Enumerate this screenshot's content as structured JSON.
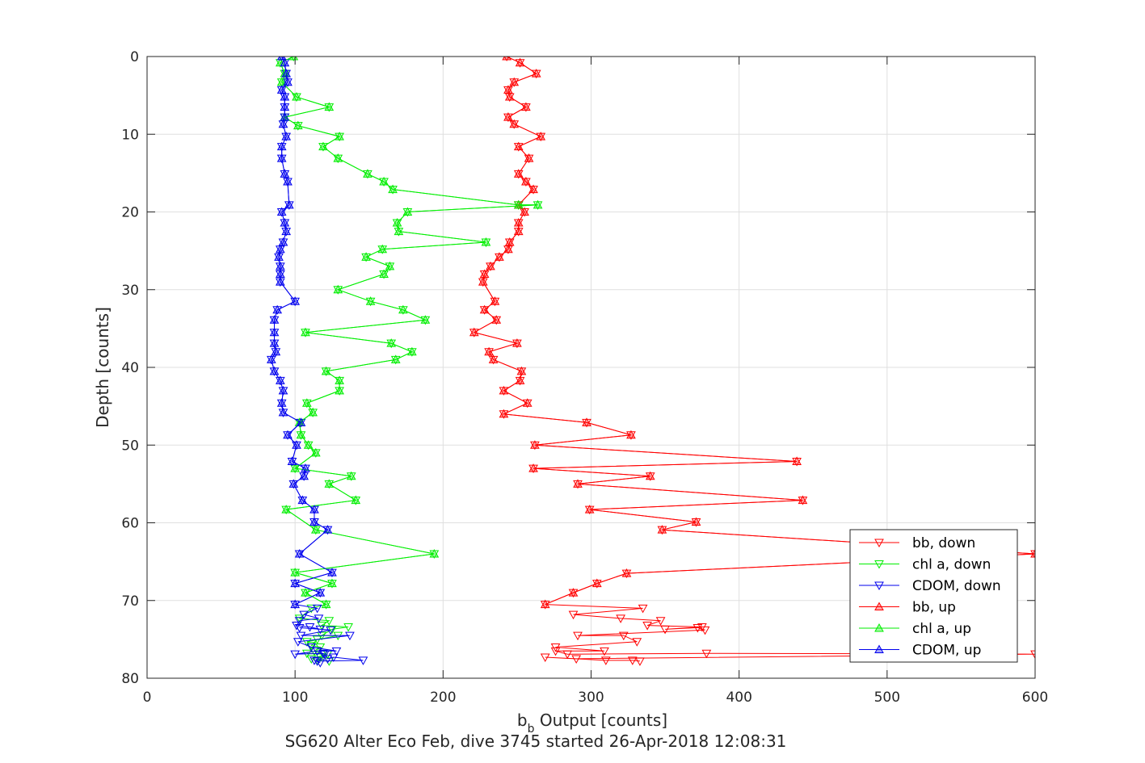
{
  "chart_data": {
    "type": "line",
    "xlabel_main": "b",
    "xlabel_sub": "b",
    "xlabel_rest": " Output [counts]",
    "ylabel": "Depth [counts]",
    "caption": "SG620 Alter Eco Feb, dive 3745 started 26-Apr-2018 12:08:31",
    "xlim": [
      0,
      600
    ],
    "ylim": [
      0,
      80
    ],
    "y_reversed": true,
    "grid": true,
    "legend_placement": "bottom-right",
    "xticks": [
      "0",
      "100",
      "200",
      "300",
      "400",
      "500",
      "600"
    ],
    "yticks": [
      "0",
      "10",
      "20",
      "30",
      "40",
      "50",
      "60",
      "70",
      "80"
    ],
    "series": [
      {
        "name": "bb, down",
        "color": "#ff0000",
        "marker": "down",
        "x": [
          243,
          252,
          263,
          248,
          244,
          245,
          256,
          244,
          248,
          266,
          251,
          258,
          251,
          256,
          261,
          251,
          255,
          251,
          251,
          245,
          244,
          238,
          232,
          228,
          227,
          235,
          228,
          236,
          221,
          250,
          231,
          234,
          253,
          252,
          241,
          257,
          241,
          297,
          327,
          262,
          439,
          261,
          340,
          291,
          443,
          299,
          371,
          348,
          600,
          324,
          304,
          288,
          269,
          335,
          288,
          320,
          347,
          338,
          375,
          350,
          372,
          377,
          291,
          322,
          331,
          276,
          309,
          276,
          284,
          378,
          600,
          290,
          269,
          310,
          328,
          333
        ],
        "y": [
          0,
          0.8,
          2.2,
          3.3,
          4.3,
          5.2,
          6.5,
          7.8,
          8.7,
          10.3,
          11.6,
          13.1,
          15.1,
          16.1,
          17.1,
          19.1,
          20.0,
          21.4,
          22.5,
          23.9,
          24.8,
          25.8,
          27.0,
          28.0,
          29.0,
          31.5,
          32.6,
          33.9,
          35.5,
          36.9,
          38.0,
          39.0,
          40.5,
          41.7,
          43.0,
          44.6,
          46.0,
          47.1,
          48.7,
          50.0,
          52.1,
          53.0,
          54.0,
          55.0,
          57.1,
          58.3,
          59.9,
          60.9,
          64.0,
          66.5,
          67.8,
          69.0,
          70.5,
          71.0,
          71.8,
          72.3,
          72.6,
          73.2,
          73.4,
          73.7,
          73.5,
          73.8,
          74.5,
          74.5,
          75.3,
          76.0,
          76.5,
          76.5,
          76.9,
          76.8,
          76.9,
          77.5,
          77.3,
          77.7,
          77.7,
          77.8
        ]
      },
      {
        "name": "chl a, down",
        "color": "#00ee00",
        "marker": "down",
        "x": [
          99,
          90,
          93,
          91,
          101,
          123,
          93,
          102,
          130,
          119,
          129,
          149,
          160,
          166,
          251,
          264,
          176,
          169,
          170,
          229,
          159,
          148,
          164,
          160,
          129,
          151,
          173,
          188,
          107,
          165,
          179,
          168,
          121,
          130,
          130,
          108,
          112,
          103,
          104,
          109,
          114,
          100,
          138,
          123,
          141,
          94,
          114,
          194,
          100,
          125,
          107,
          121,
          111,
          103,
          123,
          118,
          136,
          125,
          118,
          129,
          108,
          115,
          111,
          117,
          113,
          119,
          108,
          122,
          111,
          117,
          115,
          123
        ],
        "y": [
          0,
          0.8,
          2.2,
          3.3,
          5.2,
          6.5,
          7.8,
          8.9,
          10.3,
          11.6,
          13.1,
          15.1,
          16.1,
          17.1,
          19.1,
          19.1,
          20.0,
          21.4,
          22.5,
          23.9,
          24.8,
          25.8,
          27.0,
          28.0,
          30.0,
          31.5,
          32.6,
          33.9,
          35.5,
          36.9,
          38.0,
          39.0,
          40.5,
          41.7,
          43.0,
          44.6,
          45.8,
          47.1,
          48.7,
          50.0,
          51.0,
          53.0,
          54.0,
          55.0,
          57.1,
          58.3,
          60.9,
          64.0,
          66.4,
          67.8,
          69.0,
          70.5,
          71.0,
          72.3,
          72.6,
          73.2,
          73.4,
          73.7,
          74.5,
          74.5,
          75.3,
          75.0,
          75.8,
          76.0,
          76.5,
          76.9,
          76.8,
          76.9,
          77.5,
          77.3,
          77.7,
          77.8
        ]
      },
      {
        "name": "CDOM, down",
        "color": "#0000ee",
        "marker": "down",
        "x": [
          91,
          93,
          94,
          95,
          91,
          93,
          93,
          93,
          92,
          94,
          91,
          91,
          93,
          95,
          96,
          91,
          93,
          94,
          92,
          90,
          89,
          90,
          90,
          90,
          100,
          88,
          86,
          86,
          86,
          87,
          84,
          86,
          90,
          92,
          91,
          92,
          104,
          95,
          101,
          98,
          107,
          106,
          99,
          105,
          113,
          113,
          122,
          103,
          125,
          100,
          117,
          100,
          115,
          106,
          116,
          103,
          101,
          110,
          117,
          103,
          124,
          104,
          137,
          102,
          111,
          128,
          115,
          100,
          119,
          120,
          122,
          126,
          146,
          115,
          113,
          117
        ],
        "y": [
          0,
          0.8,
          2.2,
          3.3,
          4.3,
          5.2,
          6.5,
          7.8,
          8.7,
          10.3,
          11.6,
          13.1,
          15.1,
          16.1,
          19.1,
          20.0,
          21.4,
          22.5,
          23.9,
          24.8,
          25.8,
          27.0,
          28.0,
          29.0,
          31.5,
          32.6,
          33.9,
          35.5,
          36.9,
          38.0,
          39.0,
          40.5,
          41.7,
          43.0,
          44.6,
          45.8,
          47.1,
          48.7,
          50.0,
          52.1,
          53.0,
          54.0,
          55.0,
          57.1,
          58.3,
          59.9,
          60.9,
          64.0,
          66.4,
          67.8,
          69.0,
          70.5,
          71.0,
          71.8,
          72.3,
          72.6,
          73.2,
          73.4,
          73.7,
          73.5,
          73.8,
          74.5,
          74.5,
          75.3,
          76.0,
          76.5,
          76.5,
          76.9,
          76.8,
          76.9,
          77.5,
          77.3,
          77.7,
          77.8,
          77.7,
          78.0
        ]
      },
      {
        "name": "bb, up",
        "color": "#ff0000",
        "marker": "up",
        "x": [
          243,
          252,
          263,
          248,
          244,
          245,
          256,
          244,
          248,
          266,
          251,
          258,
          251,
          256,
          261,
          251,
          255,
          251,
          251,
          245,
          244,
          238,
          232,
          228,
          227,
          235,
          228,
          236,
          221,
          250,
          231,
          234,
          253,
          252,
          241,
          257,
          241,
          297,
          327,
          262,
          439,
          261,
          340,
          291,
          443,
          299,
          371,
          348,
          600,
          324,
          304,
          288,
          269
        ],
        "y": [
          0,
          0.8,
          2.2,
          3.3,
          4.3,
          5.2,
          6.5,
          7.8,
          8.7,
          10.3,
          11.6,
          13.1,
          15.1,
          16.1,
          17.1,
          19.1,
          20.0,
          21.4,
          22.5,
          23.9,
          24.8,
          25.8,
          27.0,
          28.0,
          29.0,
          31.5,
          32.6,
          33.9,
          35.5,
          36.9,
          38.0,
          39.0,
          40.5,
          41.7,
          43.0,
          44.6,
          46.0,
          47.1,
          48.7,
          50.0,
          52.1,
          53.0,
          54.0,
          55.0,
          57.1,
          58.3,
          59.9,
          60.9,
          64.0,
          66.5,
          67.8,
          69.0,
          70.5
        ]
      },
      {
        "name": "chl a, up",
        "color": "#00ee00",
        "marker": "up",
        "x": [
          99,
          90,
          93,
          91,
          101,
          123,
          93,
          102,
          130,
          119,
          129,
          149,
          160,
          166,
          251,
          264,
          176,
          169,
          170,
          229,
          159,
          148,
          164,
          160,
          129,
          151,
          173,
          188,
          107,
          165,
          179,
          168,
          121,
          130,
          130,
          108,
          112,
          103,
          104,
          109,
          114,
          100,
          138,
          123,
          141,
          94,
          114,
          194,
          100,
          125,
          107,
          121
        ],
        "y": [
          0,
          0.8,
          2.2,
          3.3,
          5.2,
          6.5,
          7.8,
          8.9,
          10.3,
          11.6,
          13.1,
          15.1,
          16.1,
          17.1,
          19.1,
          19.1,
          20.0,
          21.4,
          22.5,
          23.9,
          24.8,
          25.8,
          27.0,
          28.0,
          30.0,
          31.5,
          32.6,
          33.9,
          35.5,
          36.9,
          38.0,
          39.0,
          40.5,
          41.7,
          43.0,
          44.6,
          45.8,
          47.1,
          48.7,
          50.0,
          51.0,
          53.0,
          54.0,
          55.0,
          57.1,
          58.3,
          60.9,
          64.0,
          66.4,
          67.8,
          69.0,
          70.5
        ]
      },
      {
        "name": "CDOM, up",
        "color": "#0000ee",
        "marker": "up",
        "x": [
          91,
          93,
          94,
          95,
          91,
          93,
          93,
          93,
          92,
          94,
          91,
          91,
          93,
          95,
          96,
          91,
          93,
          94,
          92,
          90,
          89,
          90,
          90,
          90,
          100,
          88,
          86,
          86,
          86,
          87,
          84,
          86,
          90,
          92,
          91,
          92,
          104,
          95,
          101,
          98,
          107,
          106,
          99,
          105,
          113,
          113,
          122,
          103,
          125,
          100,
          117,
          100
        ],
        "y": [
          0,
          0.8,
          2.2,
          3.3,
          4.3,
          5.2,
          6.5,
          7.8,
          8.7,
          10.3,
          11.6,
          13.1,
          15.1,
          16.1,
          19.1,
          20.0,
          21.4,
          22.5,
          23.9,
          24.8,
          25.8,
          27.0,
          28.0,
          29.0,
          31.5,
          32.6,
          33.9,
          35.5,
          36.9,
          38.0,
          39.0,
          40.5,
          41.7,
          43.0,
          44.6,
          45.8,
          47.1,
          48.7,
          50.0,
          52.1,
          53.0,
          54.0,
          55.0,
          57.1,
          58.3,
          59.9,
          60.9,
          64.0,
          66.4,
          67.8,
          69.0,
          70.5
        ]
      }
    ]
  }
}
